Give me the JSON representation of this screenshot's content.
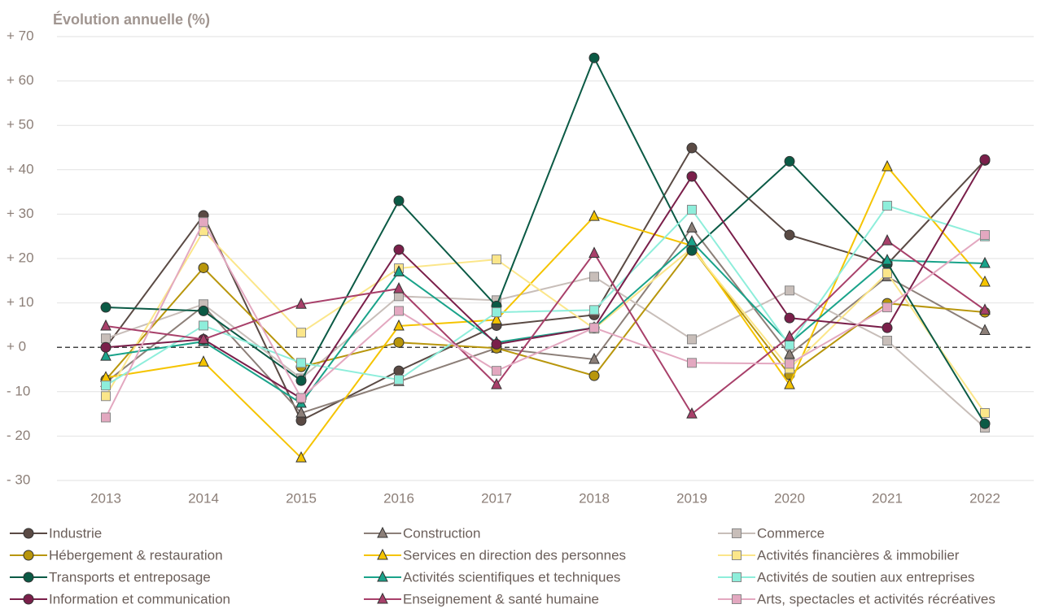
{
  "chart_data": {
    "type": "line",
    "title": "Évolution annuelle (%)",
    "categories": [
      "2013",
      "2014",
      "2015",
      "2016",
      "2017",
      "2018",
      "2019",
      "2020",
      "2021",
      "2022"
    ],
    "ylim": [
      -30,
      70
    ],
    "yticks": [
      {
        "value": -30,
        "label": "- 30"
      },
      {
        "value": -20,
        "label": "- 20"
      },
      {
        "value": -10,
        "label": "- 10"
      },
      {
        "value": 0,
        "label": "+ 0"
      },
      {
        "value": 10,
        "label": "+ 10"
      },
      {
        "value": 20,
        "label": "+ 20"
      },
      {
        "value": 30,
        "label": "+ 30"
      },
      {
        "value": 40,
        "label": "+ 40"
      },
      {
        "value": 50,
        "label": "+ 50"
      },
      {
        "value": 60,
        "label": "+ 60"
      },
      {
        "value": 70,
        "label": "+ 70"
      }
    ],
    "grid": true,
    "series": [
      {
        "name": "Industrie",
        "color": "#5a4a44",
        "marker": "circle",
        "values": [
          0,
          29.7,
          -16.5,
          -5.3,
          4.9,
          7.3,
          44.9,
          25.3,
          18.7,
          42.1
        ]
      },
      {
        "name": "Construction",
        "color": "#8c7f78",
        "marker": "triangle",
        "values": [
          -7.9,
          9.3,
          -14.8,
          -7.7,
          -0.2,
          -2.7,
          26.9,
          -1.6,
          15.9,
          3.8
        ]
      },
      {
        "name": "Commerce",
        "color": "#c8beb9",
        "marker": "square",
        "values": [
          2,
          9.7,
          -7,
          11.5,
          10.6,
          15.9,
          1.8,
          12.8,
          1.5,
          -18.1
        ]
      },
      {
        "name": "Hébergement & restauration",
        "color": "#b8960c",
        "marker": "circle",
        "values": [
          -7.3,
          17.9,
          -4.4,
          1.1,
          -0.2,
          -6.4,
          22.3,
          -6.2,
          9.9,
          7.9
        ]
      },
      {
        "name": "Services en direction des personnes",
        "color": "#f5c400",
        "marker": "triangle",
        "values": [
          -6.8,
          -3.3,
          -24.9,
          4.8,
          6.2,
          29.5,
          22.9,
          -8.4,
          40.7,
          14.7
        ]
      },
      {
        "name": "Activités financières & immobilier",
        "color": "#fbe68a",
        "marker": "square",
        "values": [
          -11,
          26.2,
          3.3,
          17.8,
          19.8,
          4.2,
          22.3,
          -4.8,
          16.7,
          -14.8
        ]
      },
      {
        "name": "Transports et entreposage",
        "color": "#0b5a45",
        "marker": "circle",
        "values": [
          9,
          8.2,
          -7.5,
          33,
          9.3,
          65.2,
          21.8,
          41.9,
          19,
          -17.2
        ]
      },
      {
        "name": "Activités scientifiques et techniques",
        "color": "#1aa38a",
        "marker": "triangle",
        "values": [
          -2,
          1.3,
          -12.6,
          17,
          1.1,
          4.4,
          23.8,
          0.9,
          19.6,
          18.9
        ]
      },
      {
        "name": "Activités de soutien aux entreprises",
        "color": "#8eeedb",
        "marker": "square",
        "values": [
          -8.6,
          4.9,
          -3.5,
          -7.3,
          7.9,
          8.4,
          31,
          0.5,
          31.9,
          25
        ]
      },
      {
        "name": "Information et communication",
        "color": "#7a1f4a",
        "marker": "circle",
        "values": [
          0,
          1.8,
          -11.5,
          22,
          0.7,
          4.4,
          38.5,
          6.6,
          4.4,
          42.3
        ]
      },
      {
        "name": "Enseignement & santé humaine",
        "color": "#a8406a",
        "marker": "triangle",
        "values": [
          4.8,
          1.8,
          9.7,
          13.2,
          -8.4,
          21.2,
          -15,
          2.4,
          24,
          8.4
        ]
      },
      {
        "name": "Arts, spectacles et activités récréatives",
        "color": "#e3a8c0",
        "marker": "square",
        "values": [
          -15.8,
          28.2,
          -11.4,
          8.2,
          -5.3,
          4.4,
          -3.5,
          -3.7,
          9,
          25.3
        ]
      }
    ]
  }
}
